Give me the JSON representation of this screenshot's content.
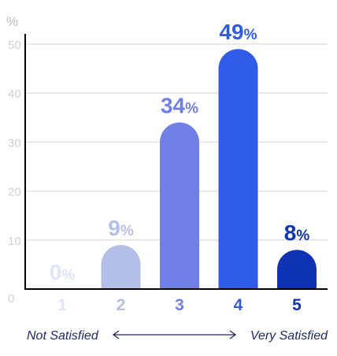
{
  "chart_data": {
    "type": "bar",
    "y_unit": "%",
    "categories": [
      "1",
      "2",
      "3",
      "4",
      "5"
    ],
    "values": [
      0,
      9,
      34,
      49,
      8
    ],
    "value_suffix": "%",
    "ylim": [
      0,
      50
    ],
    "yticks": [
      0,
      10,
      20,
      30,
      40,
      50
    ],
    "grid": true,
    "colors": [
      "#dfe5f8",
      "#b3bfe6",
      "#6f7fe6",
      "#2e5be8",
      "#0e33b5"
    ],
    "scale_left_label": "Not Satisfied",
    "scale_right_label": "Very Satisfied"
  }
}
